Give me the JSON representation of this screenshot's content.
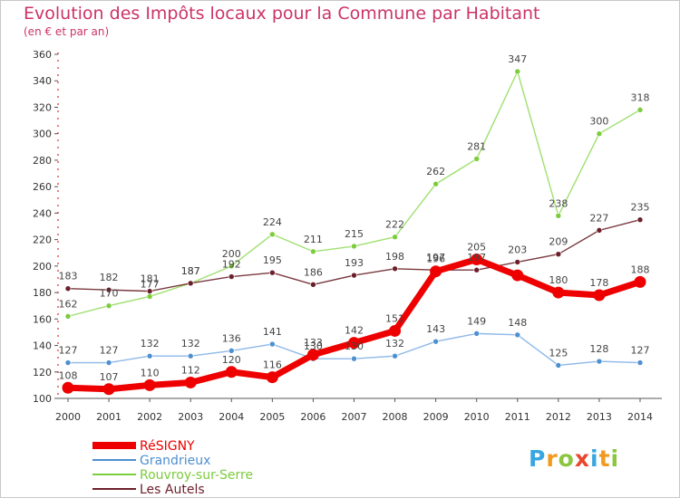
{
  "header": {
    "title": "Evolution des Impôts locaux pour la Commune par Habitant",
    "subtitle": "(en € et par an)"
  },
  "logo": {
    "text": "Proxiti",
    "colors": [
      "#3aa6e0",
      "#f29a1f",
      "#8cc63f",
      "#e8472e",
      "#3aa6e0",
      "#f29a1f",
      "#8cc63f"
    ]
  },
  "chart_data": {
    "type": "line",
    "title": "Evolution des Impôts locaux pour la Commune par Habitant",
    "subtitle": "(en € et par an)",
    "xlabel": "",
    "ylabel": "",
    "x": [
      2000,
      2001,
      2002,
      2003,
      2004,
      2005,
      2006,
      2007,
      2008,
      2009,
      2010,
      2011,
      2012,
      2013,
      2014
    ],
    "ylim": [
      100,
      360
    ],
    "yticks": [
      100,
      120,
      140,
      160,
      180,
      200,
      220,
      240,
      260,
      280,
      300,
      320,
      340,
      360
    ],
    "grid": false,
    "legend_position": "bottom-left",
    "series": [
      {
        "name": "RéSIGNY",
        "color": "#ee0000",
        "line_color": "#ee0000",
        "values": [
          108,
          107,
          110,
          112,
          120,
          116,
          133,
          142,
          151,
          196,
          205,
          193,
          180,
          178,
          188
        ],
        "labels": [
          "108",
          "107",
          "110",
          "112",
          "120",
          "116",
          "133",
          "142",
          "151",
          "196",
          "205",
          "",
          "180",
          "178",
          "188"
        ]
      },
      {
        "name": "Grandrieux",
        "color": "#4e8fd1",
        "line_color": "#8db8e8",
        "values": [
          127,
          127,
          132,
          132,
          136,
          141,
          130,
          130,
          132,
          143,
          149,
          148,
          125,
          128,
          127
        ],
        "labels": [
          "127",
          "127",
          "132",
          "132",
          "136",
          "141",
          "130",
          "130",
          "132",
          "143",
          "149",
          "148",
          "125",
          "128",
          "127"
        ]
      },
      {
        "name": "Rouvroy-sur-Serre",
        "color": "#7ccc3c",
        "line_color": "#9fe070",
        "values": [
          162,
          170,
          177,
          187,
          200,
          224,
          211,
          215,
          222,
          262,
          281,
          347,
          238,
          300,
          318
        ],
        "labels": [
          "162",
          "170",
          "177",
          "187",
          "200",
          "224",
          "211",
          "215",
          "222",
          "262",
          "281",
          "347",
          "238",
          "300",
          "318"
        ]
      },
      {
        "name": "Les Autels",
        "color": "#6b1f2a",
        "line_color": "#7a3a40",
        "values": [
          183,
          182,
          181,
          187,
          192,
          195,
          186,
          193,
          198,
          197,
          197,
          203,
          209,
          227,
          235
        ],
        "labels": [
          "183",
          "182",
          "181",
          "187",
          "192",
          "195",
          "186",
          "193",
          "198",
          "197",
          "197",
          "203",
          "209",
          "227",
          "235"
        ]
      }
    ]
  }
}
